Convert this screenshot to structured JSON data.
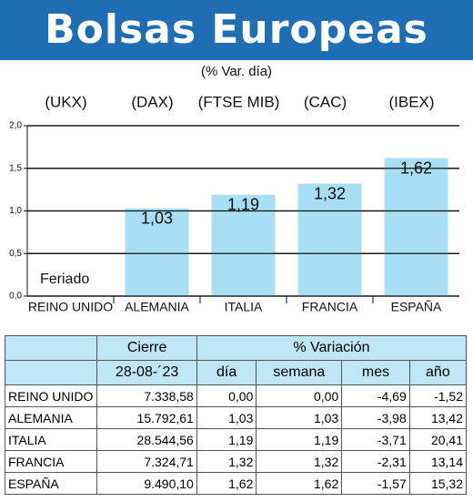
{
  "chart_data": {
    "type": "bar",
    "title": "Bolsas Europeas",
    "subtitle": "(% Var. día)",
    "index_codes": [
      "(UKX)",
      "(DAX)",
      "(FTSE MIB)",
      "(CAC)",
      "(IBEX)"
    ],
    "categories": [
      "REINO UNIDO",
      "ALEMANIA",
      "ITALIA",
      "FRANCIA",
      "ESPAÑA"
    ],
    "values": [
      null,
      1.03,
      1.19,
      1.32,
      1.62
    ],
    "value_labels": [
      null,
      "1,03",
      "1,19",
      "1,32",
      "1,62"
    ],
    "annotation": "Feriado",
    "color": "#a9dff5",
    "ylim": [
      0,
      2
    ],
    "yticks": [
      {
        "value": 0,
        "label": "0,0"
      },
      {
        "value": 0.5,
        "label": "0,5"
      },
      {
        "value": 1,
        "label": "1,0"
      },
      {
        "value": 1.5,
        "label": "1,5"
      },
      {
        "value": 2,
        "label": "2,0"
      }
    ],
    "grid": true
  },
  "table": {
    "headers": [
      [
        "Cierre",
        "% Variación"
      ],
      [
        "28-08-´23",
        "día",
        "semana",
        "mes",
        "año"
      ]
    ],
    "rows": [
      [
        "REINO UNIDO",
        "7.338,58",
        "0,00",
        "0,00",
        "-4,69",
        "-1,52"
      ],
      [
        "ALEMANIA",
        "15.792,61",
        "1,03",
        "1,03",
        "-3,98",
        "13,42"
      ],
      [
        "ITALIA",
        "28.544,56",
        "1,19",
        "1,19",
        "-3,71",
        "20,41"
      ],
      [
        "FRANCIA",
        "7.324,71",
        "1,32",
        "1,32",
        "-2,31",
        "13,14"
      ],
      [
        "ESPAÑA",
        "9.490,10",
        "1,62",
        "1,62",
        "-1,57",
        "15,32"
      ]
    ]
  }
}
